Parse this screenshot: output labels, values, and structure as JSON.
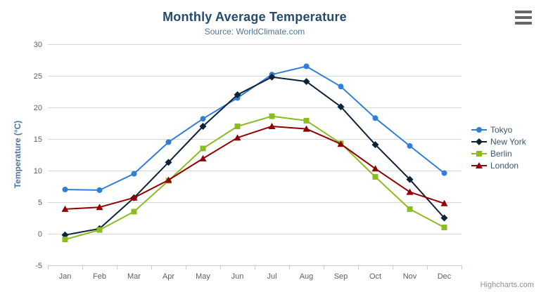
{
  "chart": {
    "credit": "Highcharts.com",
    "menu_icon": "hamburger-icon"
  },
  "chart_data": {
    "type": "line",
    "title": "Monthly Average Temperature",
    "subtitle": "Source: WorldClimate.com",
    "xlabel": "",
    "ylabel": "Temperature (°C)",
    "categories": [
      "Jan",
      "Feb",
      "Mar",
      "Apr",
      "May",
      "Jun",
      "Jul",
      "Aug",
      "Sep",
      "Oct",
      "Nov",
      "Dec"
    ],
    "series": [
      {
        "name": "Tokyo",
        "color": "#2f7ed8",
        "marker": "circle",
        "values": [
          7.0,
          6.9,
          9.5,
          14.5,
          18.2,
          21.5,
          25.2,
          26.5,
          23.3,
          18.3,
          13.9,
          9.6
        ]
      },
      {
        "name": "New York",
        "color": "#0d233a",
        "marker": "diamond",
        "values": [
          -0.2,
          0.8,
          5.7,
          11.3,
          17.0,
          22.0,
          24.8,
          24.1,
          20.1,
          14.1,
          8.6,
          2.5
        ]
      },
      {
        "name": "Berlin",
        "color": "#8bbc21",
        "marker": "square",
        "values": [
          -0.9,
          0.6,
          3.5,
          8.4,
          13.5,
          17.0,
          18.6,
          17.9,
          14.3,
          9.0,
          3.9,
          1.0
        ]
      },
      {
        "name": "London",
        "color": "#910000",
        "marker": "triangle",
        "values": [
          3.9,
          4.2,
          5.7,
          8.5,
          11.9,
          15.2,
          17.0,
          16.6,
          14.2,
          10.3,
          6.6,
          4.8
        ]
      }
    ],
    "ylim": [
      -5,
      30
    ],
    "y_ticks": [
      -5,
      0,
      5,
      10,
      15,
      20,
      25,
      30
    ],
    "grid": true,
    "legend_position": "right",
    "colors": {
      "grid": "#D8D8D8",
      "axis_line": "#C0D0E0",
      "tick_label": "#606060",
      "title": "#274b6d",
      "subtitle": "#4d759e",
      "axis_title": "#4d759e",
      "legend_text": "#3E576F",
      "credit": "#909090",
      "menu_icon": "#666666"
    }
  }
}
